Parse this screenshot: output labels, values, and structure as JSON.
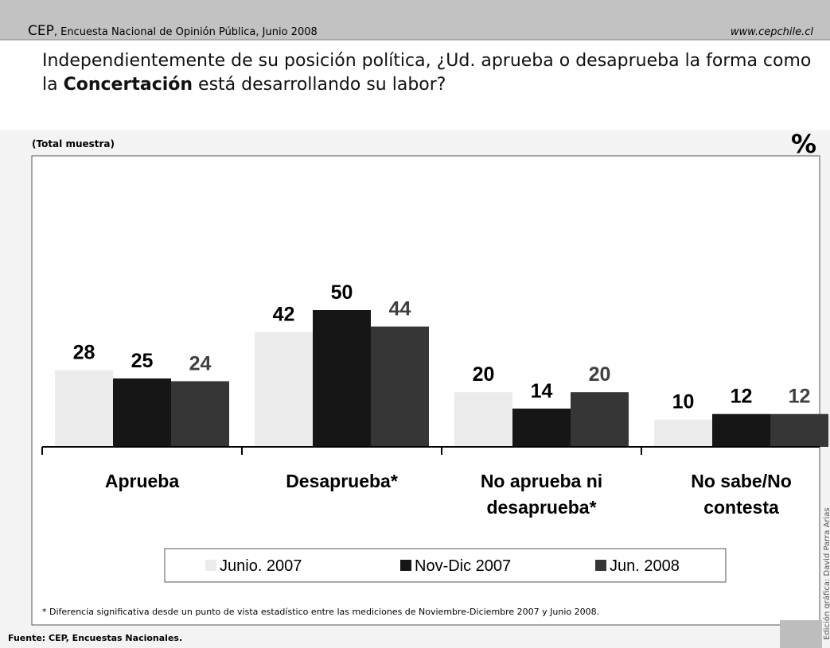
{
  "header": {
    "brand": "CEP",
    "subtitle": ", Encuesta Nacional de Opinión Pública, Junio 2008",
    "url": "www.cepchile.cl"
  },
  "question": {
    "parts": [
      "Independientemente de su posición política, ¿Ud. aprueba o desaprueba la forma como la ",
      "Concertación",
      " está desarrollando su labor?"
    ]
  },
  "chart_data": {
    "type": "bar",
    "subtitle": "(Total muestra)",
    "unit": "%",
    "categories": [
      "Aprueba",
      "Desaprueba*",
      "No aprueba ni desaprueba*",
      "No sabe/No contesta"
    ],
    "series": [
      {
        "name": "Junio. 2007",
        "color": "#ebebeb",
        "values": [
          28,
          42,
          20,
          10
        ]
      },
      {
        "name": "Nov-Dic 2007",
        "color": "#161616",
        "values": [
          25,
          50,
          14,
          12
        ]
      },
      {
        "name": "Jun. 2008",
        "color": "#363636",
        "values": [
          24,
          44,
          20,
          12
        ]
      }
    ],
    "legend": "bottom",
    "footnote": "* Diferencia significativa desde un punto de vista estadístico entre las mediciones de Noviembre-Diciembre 2007 y Junio 2008."
  },
  "source": "Fuente: CEP, Encuestas Nacionales.",
  "credit": "Edición gráfica: David Parra Arias"
}
